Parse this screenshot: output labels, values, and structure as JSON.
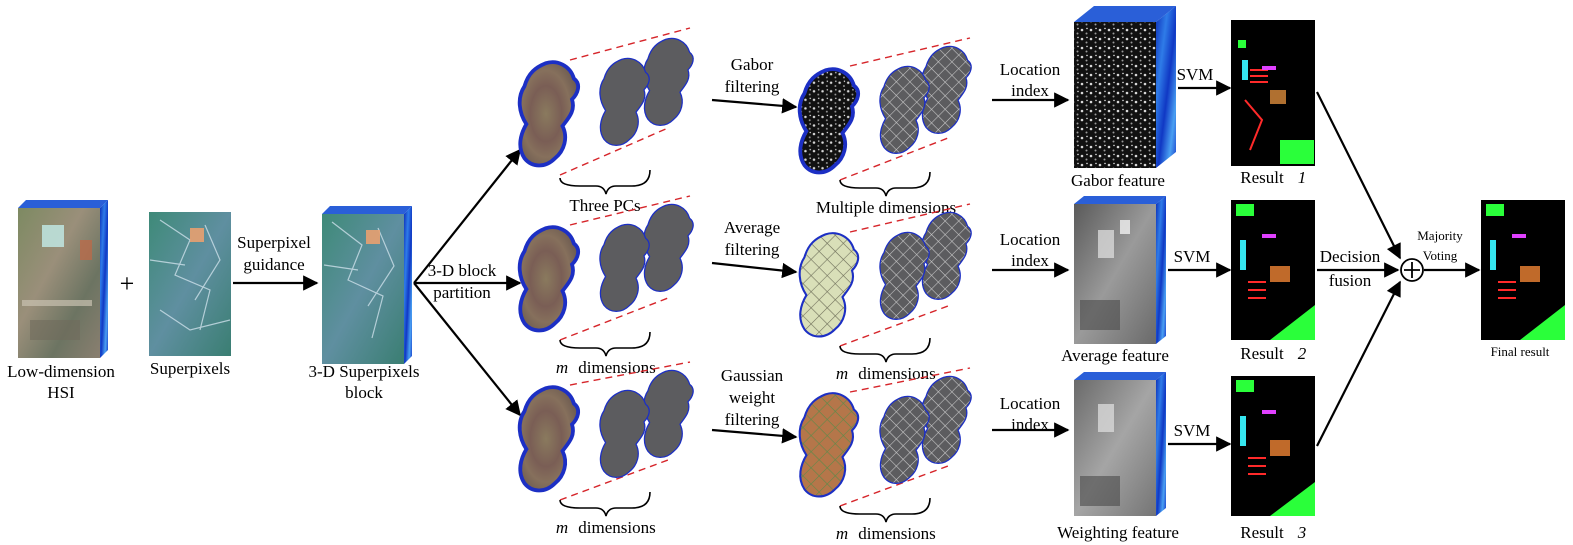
{
  "labels": {
    "low_dim_hsi_1": "Low-dimension",
    "low_dim_hsi_2": "HSI",
    "plus": "+",
    "superpixels": "Superpixels",
    "superpixel_guidance_1": "Superpixel",
    "superpixel_guidance_2": "guidance",
    "block_3d_1": "3-D Superpixels",
    "block_3d_2": "block",
    "partition_1": "3-D block",
    "partition_2": "partition",
    "three_pcs": "Three PCs",
    "m_dimensions_a": "dimensions",
    "m_dimensions_b": "dimensions",
    "m_letter": "m",
    "gabor_filtering_1": "Gabor",
    "gabor_filtering_2": "filtering",
    "average_filtering_1": "Average",
    "average_filtering_2": "filtering",
    "gaussian_filtering_1": "Gaussian",
    "gaussian_filtering_2": "weight",
    "gaussian_filtering_3": "filtering",
    "multiple_dimensions": "Multiple dimensions",
    "location_index_1": "Location",
    "location_index_2": "index",
    "gabor_feature": "Gabor feature",
    "average_feature": "Average feature",
    "weighting_feature": "Weighting feature",
    "svm": "SVM",
    "result_1": "Result",
    "result_2": "Result",
    "result_3": "Result",
    "result_1_num": "1",
    "result_2_num": "2",
    "result_3_num": "3",
    "decision_fusion_1": "Decision",
    "decision_fusion_2": "fusion",
    "majority_voting_1": "Majority",
    "majority_voting_2": "Voting",
    "final_result": "Final result",
    "oplus": "+"
  },
  "colors": {
    "hsi_blue": "#1a49d4",
    "blob_outline": "#1c2fc4",
    "dashed_red": "#d6252a",
    "average_fill": "#d9dfb8",
    "gaussian_fill": "#b5764a",
    "class_map_bg": "#000000"
  }
}
